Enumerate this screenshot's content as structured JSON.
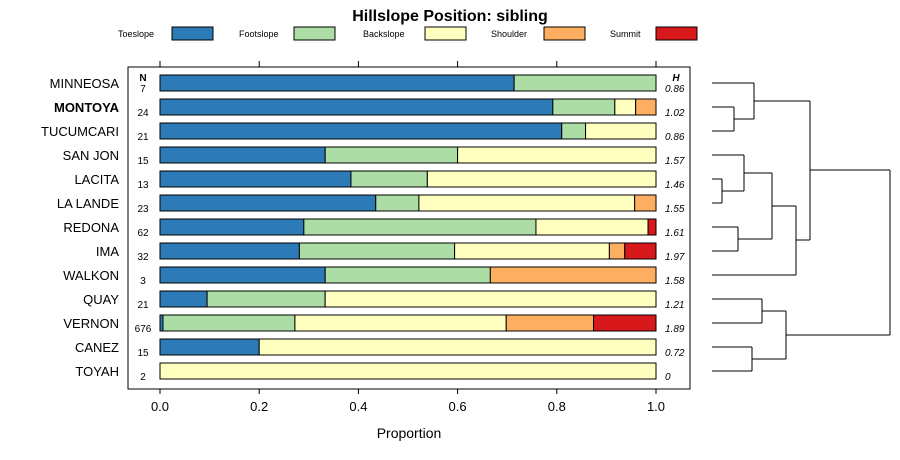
{
  "chart_data": {
    "type": "bar",
    "orientation": "horizontal-stacked",
    "title": "Hillslope Position: sibling",
    "xlabel": "Proportion",
    "ylabel": "",
    "xlim": [
      0,
      1
    ],
    "xticks": [
      "0.0",
      "0.2",
      "0.4",
      "0.6",
      "0.8",
      "1.0"
    ],
    "n_header": "N",
    "h_header": "H",
    "legend": [
      {
        "name": "Toeslope",
        "color": "#2c7bb6"
      },
      {
        "name": "Footslope",
        "color": "#abdda4"
      },
      {
        "name": "Backslope",
        "color": "#ffffbf"
      },
      {
        "name": "Shoulder",
        "color": "#fdae61"
      },
      {
        "name": "Summit",
        "color": "#d7191c"
      }
    ],
    "categories": [
      "MINNEOSA",
      "MONTOYA",
      "TUCUMCARI",
      "SAN JON",
      "LACITA",
      "LA LANDE",
      "REDONA",
      "IMA",
      "WALKON",
      "QUAY",
      "VERNON",
      "CANEZ",
      "TOYAH"
    ],
    "highlight": "MONTOYA",
    "n": [
      "7",
      "24",
      "21",
      "15",
      "13",
      "23",
      "62",
      "32",
      "3",
      "21",
      "676",
      "15",
      "2"
    ],
    "h": [
      "0.86",
      "1.02",
      "0.86",
      "1.57",
      "1.46",
      "1.55",
      "1.61",
      "1.97",
      "1.58",
      "1.21",
      "1.89",
      "0.72",
      "0"
    ],
    "series": [
      {
        "name": "Toeslope",
        "values": [
          0.714,
          0.792,
          0.81,
          0.333,
          0.385,
          0.435,
          0.29,
          0.281,
          0.333,
          0.095,
          0.006,
          0.2,
          0
        ]
      },
      {
        "name": "Footslope",
        "values": [
          0.286,
          0.125,
          0.048,
          0.267,
          0.154,
          0.087,
          0.468,
          0.313,
          0.333,
          0.238,
          0.266,
          0,
          0
        ]
      },
      {
        "name": "Backslope",
        "values": [
          0,
          0.042,
          0.142,
          0.4,
          0.461,
          0.435,
          0.226,
          0.312,
          0,
          0.667,
          0.426,
          0.8,
          1
        ]
      },
      {
        "name": "Shoulder",
        "values": [
          0,
          0.041,
          0,
          0,
          0,
          0.043,
          0,
          0.031,
          0.334,
          0,
          0.176,
          0,
          0
        ]
      },
      {
        "name": "Summit",
        "values": [
          0,
          0,
          0,
          0,
          0,
          0,
          0.016,
          0.063,
          0,
          0,
          0.126,
          0,
          0
        ]
      }
    ]
  }
}
